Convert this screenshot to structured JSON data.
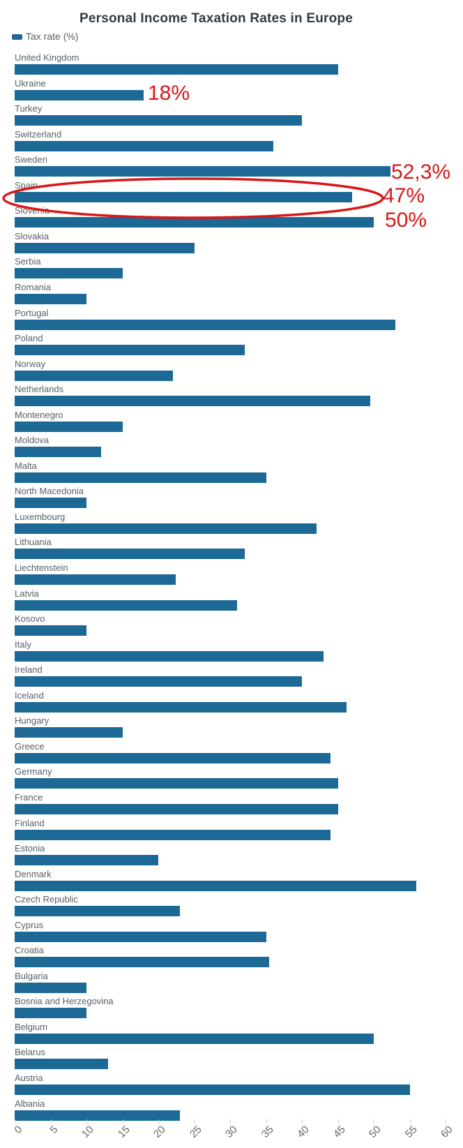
{
  "title": "Personal Income Taxation Rates in Europe",
  "legend": {
    "label": "Tax rate (%)"
  },
  "colors": {
    "bar": "#1d6996",
    "annotation": "#d91717",
    "title": "#333940",
    "country_label": "#555f66",
    "tick_label": "#666666"
  },
  "chart_data": {
    "type": "bar",
    "orientation": "horizontal",
    "legend_entries": [
      "Tax rate (%)"
    ],
    "categories": [
      "United Kingdom",
      "Ukraine",
      "Turkey",
      "Switzerland",
      "Sweden",
      "Spain",
      "Slovenia",
      "Slovakia",
      "Serbia",
      "Romania",
      "Portugal",
      "Poland",
      "Norway",
      "Netherlands",
      "Montenegro",
      "Moldova",
      "Malta",
      "North Macedonia",
      "Luxembourg",
      "Lithuania",
      "Liechtenstein",
      "Latvia",
      "Kosovo",
      "Italy",
      "Ireland",
      "Iceland",
      "Hungary",
      "Greece",
      "Germany",
      "France",
      "Finland",
      "Estonia",
      "Denmark",
      "Czech Republic",
      "Cyprus",
      "Croatia",
      "Bulgaria",
      "Bosnia and Herzegovina",
      "Belgium",
      "Belarus",
      "Austria",
      "Albania"
    ],
    "values": [
      45,
      18,
      40,
      36,
      52.3,
      47,
      50,
      25,
      15,
      10,
      53,
      32,
      22,
      49.5,
      15,
      12,
      35,
      10,
      42,
      32,
      22.4,
      31,
      10,
      43,
      40,
      46.25,
      15,
      44,
      45,
      45,
      44,
      20,
      55.9,
      23,
      35,
      35.4,
      10,
      10,
      50,
      13,
      55,
      23
    ],
    "xlim": [
      0,
      60
    ],
    "x_ticks": [
      0,
      5,
      10,
      15,
      20,
      25,
      30,
      35,
      40,
      45,
      50,
      55,
      60
    ],
    "grid": false,
    "annotations": [
      {
        "text": "18%",
        "country": "Ukraine"
      },
      {
        "text": "52,3%",
        "country": "Sweden"
      },
      {
        "text": "47%",
        "country": "Spain"
      },
      {
        "text": "50%",
        "country": "Slovenia"
      }
    ],
    "highlight_ellipse": {
      "country": "Spain"
    }
  }
}
